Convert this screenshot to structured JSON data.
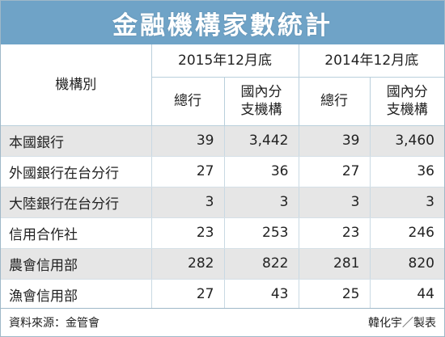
{
  "title": "金融機構家數統計",
  "header": {
    "category_label": "機構別",
    "period_2015": "2015年12月底",
    "period_2014": "2014年12月底",
    "head_office": "總行",
    "branch_line1": "國內分",
    "branch_line2": "支機構"
  },
  "rows": [
    {
      "name": "本國銀行",
      "h2015": "39",
      "b2015": "3,442",
      "h2014": "39",
      "b2014": "3,460"
    },
    {
      "name": "外國銀行在台分行",
      "h2015": "27",
      "b2015": "36",
      "h2014": "27",
      "b2014": "36"
    },
    {
      "name": "大陸銀行在台分行",
      "h2015": "3",
      "b2015": "3",
      "h2014": "3",
      "b2014": "3"
    },
    {
      "name": "信用合作社",
      "h2015": "23",
      "b2015": "253",
      "h2014": "23",
      "b2014": "246"
    },
    {
      "name": "農會信用部",
      "h2015": "282",
      "b2015": "822",
      "h2014": "281",
      "b2014": "820"
    },
    {
      "name": "漁會信用部",
      "h2015": "27",
      "b2015": "43",
      "h2014": "25",
      "b2014": "44"
    }
  ],
  "footer": {
    "source": "資料來源：金管會",
    "credit": "韓化宇／製表"
  },
  "colors": {
    "title_bar": "#6fa3c7",
    "row_shade": "#e6e6e6"
  }
}
